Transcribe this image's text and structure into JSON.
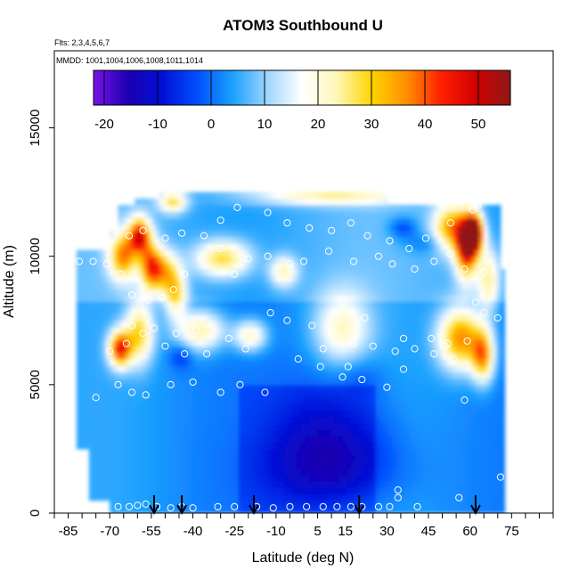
{
  "chart_data": {
    "type": "heatmap",
    "title": "ATOM3 Southbound U",
    "subtitle_flights": "Flts: 2,3,4,5,6,7",
    "subtitle_dates": "MMDD: 1001,1004,1006,1008,1011,1014",
    "xlabel": "Latitude (deg N)",
    "ylabel": "Altitude (m)",
    "xlim": [
      -90,
      90
    ],
    "ylim": [
      0,
      18000
    ],
    "x_ticks": [
      -85,
      -70,
      -55,
      -40,
      -25,
      -10,
      5,
      15,
      30,
      45,
      60,
      75
    ],
    "y_ticks": [
      0,
      5000,
      10000,
      15000
    ],
    "colorbar": {
      "range": [
        -22,
        56
      ],
      "ticks": [
        -20,
        -10,
        0,
        10,
        20,
        30,
        40,
        50
      ],
      "colors": [
        "#7a12ea",
        "#1a00b0",
        "#0010d8",
        "#0050ff",
        "#1aa0ff",
        "#9ed6ff",
        "#ffffff",
        "#fff7b8",
        "#ffd400",
        "#ff9000",
        "#ff2000",
        "#d00000",
        "#901818"
      ]
    },
    "grid": false,
    "profile_arrows_lat": [
      -54,
      -44,
      -18,
      20,
      62
    ],
    "data_points": [
      [
        -67,
        250
      ],
      [
        -63,
        250
      ],
      [
        -60,
        300
      ],
      [
        -57,
        350
      ],
      [
        -53,
        250
      ],
      [
        -48,
        200
      ],
      [
        -44,
        250
      ],
      [
        -40,
        200
      ],
      [
        -31,
        250
      ],
      [
        -25,
        250
      ],
      [
        -17,
        250
      ],
      [
        -11,
        200
      ],
      [
        -5,
        250
      ],
      [
        1,
        250
      ],
      [
        7,
        250
      ],
      [
        12,
        250
      ],
      [
        17,
        250
      ],
      [
        21,
        250
      ],
      [
        27,
        250
      ],
      [
        31,
        250
      ],
      [
        34,
        600
      ],
      [
        34,
        900
      ],
      [
        41,
        250
      ],
      [
        56,
        600
      ],
      [
        71,
        1400
      ],
      [
        -75,
        4500
      ],
      [
        -67,
        5000
      ],
      [
        -62,
        4700
      ],
      [
        -57,
        4600
      ],
      [
        -48,
        5000
      ],
      [
        -40,
        5100
      ],
      [
        -30,
        4700
      ],
      [
        -23,
        5000
      ],
      [
        -14,
        4700
      ],
      [
        -2,
        6000
      ],
      [
        6,
        5700
      ],
      [
        7,
        6400
      ],
      [
        10,
        7100
      ],
      [
        14,
        5300
      ],
      [
        16,
        5700
      ],
      [
        18,
        6600
      ],
      [
        21,
        5200
      ],
      [
        25,
        6500
      ],
      [
        30,
        4900
      ],
      [
        33,
        6300
      ],
      [
        36,
        5600
      ],
      [
        40,
        6400
      ],
      [
        47,
        6200
      ],
      [
        52,
        6600
      ],
      [
        54,
        6000
      ],
      [
        58,
        4400
      ],
      [
        -70,
        6300
      ],
      [
        -64,
        6600
      ],
      [
        -62,
        7300
      ],
      [
        -58,
        7000
      ],
      [
        -54,
        7200
      ],
      [
        -50,
        6500
      ],
      [
        -46,
        7000
      ],
      [
        -43,
        6200
      ],
      [
        -39,
        7100
      ],
      [
        -35,
        6200
      ],
      [
        -27,
        6800
      ],
      [
        -21,
        6400
      ],
      [
        -12,
        7800
      ],
      [
        -6,
        7500
      ],
      [
        3,
        7300
      ],
      [
        12,
        7600
      ],
      [
        22,
        7600
      ],
      [
        36,
        6800
      ],
      [
        46,
        6800
      ],
      [
        51,
        6500
      ],
      [
        59,
        6700
      ],
      [
        65,
        7800
      ],
      [
        70,
        7600
      ],
      [
        -81,
        9800
      ],
      [
        -76,
        9800
      ],
      [
        -71,
        9700
      ],
      [
        -66,
        9300
      ],
      [
        -62,
        8500
      ],
      [
        -56,
        8300
      ],
      [
        -51,
        8400
      ],
      [
        -47,
        8700
      ],
      [
        -43,
        9300
      ],
      [
        -37,
        9900
      ],
      [
        -30,
        10300
      ],
      [
        -25,
        9300
      ],
      [
        -20,
        9900
      ],
      [
        -13,
        10000
      ],
      [
        -5,
        9700
      ],
      [
        0,
        9800
      ],
      [
        9,
        10200
      ],
      [
        18,
        9800
      ],
      [
        27,
        10000
      ],
      [
        32,
        9700
      ],
      [
        40,
        9500
      ],
      [
        47,
        9800
      ],
      [
        53,
        10100
      ],
      [
        58,
        9500
      ],
      [
        62,
        8200
      ],
      [
        65,
        9400
      ],
      [
        -63,
        10800
      ],
      [
        -58,
        11000
      ],
      [
        -50,
        10700
      ],
      [
        -44,
        10900
      ],
      [
        -36,
        10800
      ],
      [
        -30,
        11400
      ],
      [
        -24,
        11900
      ],
      [
        -13,
        11700
      ],
      [
        -6,
        11300
      ],
      [
        2,
        11100
      ],
      [
        10,
        11000
      ],
      [
        17,
        11300
      ],
      [
        23,
        10800
      ],
      [
        31,
        10600
      ],
      [
        38,
        10300
      ],
      [
        44,
        10700
      ],
      [
        53,
        11300
      ],
      [
        61,
        11800
      ],
      [
        63,
        12000
      ]
    ]
  }
}
